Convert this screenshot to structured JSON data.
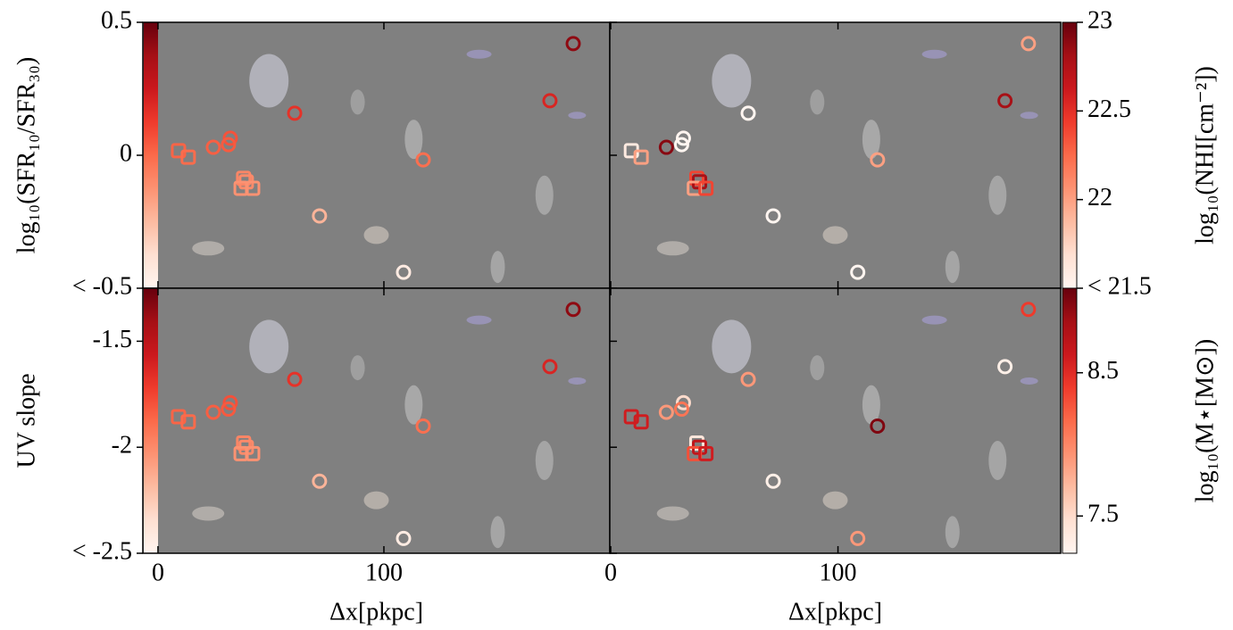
{
  "chart_data": [
    {
      "type": "scatter",
      "x": [
        183.8,
        173.5,
        60.5,
        32.0,
        31.2,
        24.5,
        9.1,
        13.4,
        117.4,
        37.9,
        39.1,
        36.8,
        41.9,
        71.5,
        108.7
      ],
      "values": [
        0.42,
        0.205,
        0.158,
        0.064,
        0.04,
        0.03,
        0.017,
        -0.007,
        -0.017,
        -0.087,
        -0.1,
        -0.124,
        -0.124,
        -0.228,
        -0.44
      ],
      "markers": [
        "o",
        "o",
        "o",
        "o",
        "o",
        "o",
        "s",
        "s",
        "o",
        "s",
        "s",
        "s",
        "s",
        "o",
        "o"
      ],
      "color_by": "y",
      "ylabel": "log₁₀(SFR₁₀/SFR₃₀)",
      "xlim": [
        -6.7,
        200
      ],
      "xticks": [
        0,
        100
      ],
      "ylim": [
        -0.5,
        0.5
      ],
      "yticks": [
        {
          "value": -0.5,
          "label": "< -0.5"
        },
        0,
        0.5
      ],
      "colorbar": {
        "lim": [
          -0.5,
          0.5
        ],
        "side": "left"
      },
      "colormap": [
        "#fff5f0",
        "#fee0d2",
        "#fcbba1",
        "#fc9272",
        "#fb6a4a",
        "#ef3b2c",
        "#cb181d",
        "#a50f15",
        "#67000d"
      ]
    },
    {
      "type": "scatter",
      "x": [
        183.8,
        173.5,
        60.5,
        32.0,
        31.2,
        24.5,
        9.1,
        13.4,
        117.4,
        37.9,
        39.1,
        36.8,
        41.9,
        71.5,
        108.7
      ],
      "values": [
        0.42,
        0.205,
        0.158,
        0.064,
        0.04,
        0.03,
        0.017,
        -0.007,
        -0.017,
        -0.087,
        -0.1,
        -0.124,
        -0.124,
        -0.228,
        -0.44
      ],
      "colors": [
        22.0,
        22.8,
        21.5,
        21.5,
        21.5,
        22.9,
        21.6,
        22.0,
        22.0,
        22.4,
        22.8,
        22.0,
        22.4,
        21.5,
        21.5
      ],
      "markers": [
        "o",
        "o",
        "o",
        "o",
        "o",
        "o",
        "s",
        "s",
        "o",
        "s",
        "s",
        "s",
        "s",
        "o",
        "o"
      ],
      "xlim": [
        -0.4,
        198
      ],
      "xticks": [
        0,
        100
      ],
      "ylim": [
        -0.5,
        0.5
      ],
      "yticks": [
        -0.5,
        0,
        0.5
      ],
      "colorbar": {
        "label": "log₁₀(NHI[cm⁻²])",
        "lim": [
          21.5,
          23
        ],
        "ticks": [
          {
            "value": 21.5,
            "label": "< 21.5"
          },
          22,
          22.5,
          23
        ],
        "side": "right"
      },
      "colormap": [
        "#fff5f0",
        "#fee0d2",
        "#fcbba1",
        "#fc9272",
        "#fb6a4a",
        "#ef3b2c",
        "#cb181d",
        "#a50f15",
        "#67000d"
      ]
    },
    {
      "type": "scatter",
      "x": [
        183.8,
        173.5,
        60.5,
        32.0,
        31.2,
        24.5,
        9.1,
        13.4,
        117.4,
        37.9,
        39.1,
        36.8,
        41.9,
        71.5,
        108.7
      ],
      "values": [
        -1.35,
        -1.62,
        -1.68,
        -1.79,
        -1.82,
        -1.835,
        -1.856,
        -1.88,
        -1.9,
        -1.98,
        -2.0,
        -2.03,
        -2.03,
        -2.16,
        -2.43
      ],
      "markers": [
        "o",
        "o",
        "o",
        "o",
        "o",
        "o",
        "s",
        "s",
        "o",
        "s",
        "s",
        "s",
        "s",
        "o",
        "o"
      ],
      "color_by": "y",
      "ylabel": "UV slope",
      "xlabel": "Δx[pkpc]",
      "xlim": [
        -6.7,
        200
      ],
      "xticks": [
        0,
        100
      ],
      "ylim": [
        -2.5,
        -1.25
      ],
      "yticks": [
        {
          "value": -2.5,
          "label": "< -2.5"
        },
        -2,
        -1.5
      ],
      "colorbar": {
        "lim": [
          -2.5,
          -1.25
        ],
        "side": "left"
      },
      "colormap": [
        "#fff5f0",
        "#fee0d2",
        "#fcbba1",
        "#fc9272",
        "#fb6a4a",
        "#ef3b2c",
        "#cb181d",
        "#a50f15",
        "#67000d"
      ]
    },
    {
      "type": "scatter",
      "x": [
        183.8,
        173.5,
        60.5,
        32.0,
        31.2,
        24.5,
        9.1,
        13.4,
        117.4,
        37.9,
        39.1,
        36.8,
        41.9,
        71.5,
        108.7
      ],
      "values": [
        -1.35,
        -1.62,
        -1.68,
        -1.79,
        -1.82,
        -1.835,
        -1.856,
        -1.88,
        -1.9,
        -1.98,
        -2.0,
        -2.03,
        -2.03,
        -2.16,
        -2.43
      ],
      "colors": [
        8.4,
        7.3,
        7.9,
        7.5,
        8.1,
        7.9,
        8.6,
        8.6,
        9.0,
        7.4,
        8.7,
        8.3,
        8.6,
        7.3,
        7.9
      ],
      "markers": [
        "o",
        "o",
        "o",
        "o",
        "o",
        "o",
        "s",
        "s",
        "o",
        "s",
        "s",
        "s",
        "s",
        "o",
        "o"
      ],
      "xlabel": "Δx[pkpc]",
      "xlim": [
        -0.4,
        198
      ],
      "xticks": [
        0,
        100
      ],
      "ylim": [
        -2.5,
        -1.25
      ],
      "yticks": [
        -2.5,
        -2,
        -1.5
      ],
      "colorbar": {
        "label": "log₁₀(M⋆[M⊙])",
        "lim": [
          7.24,
          9.09
        ],
        "ticks": [
          7.5,
          8.5
        ],
        "side": "right"
      },
      "colormap": [
        "#fff5f0",
        "#fee0d2",
        "#fcbba1",
        "#fc9272",
        "#fb6a4a",
        "#ef3b2c",
        "#cb181d",
        "#a50f15",
        "#67000d"
      ]
    }
  ]
}
